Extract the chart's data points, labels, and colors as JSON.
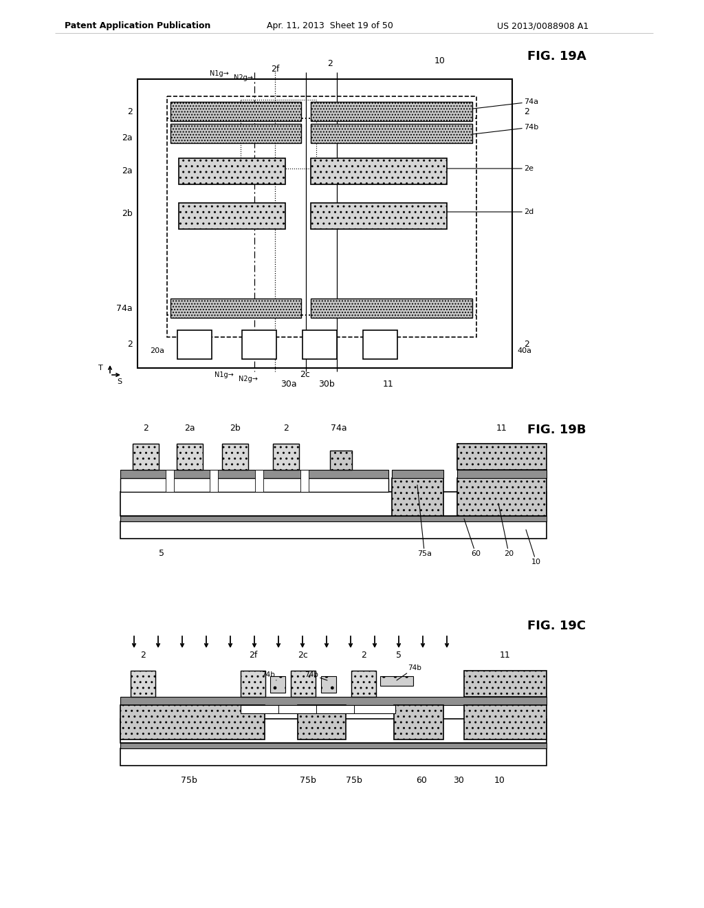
{
  "bg_color": "#ffffff",
  "header_left": "Patent Application Publication",
  "header_mid": "Apr. 11, 2013  Sheet 19 of 50",
  "header_right": "US 2013/0088908 A1",
  "fig_titles": [
    "FIG. 19A",
    "FIG. 19B",
    "FIG. 19C"
  ],
  "gray_light": "#c8c8c8",
  "gray_dark": "#909090",
  "gray_med": "#b0b0b0"
}
